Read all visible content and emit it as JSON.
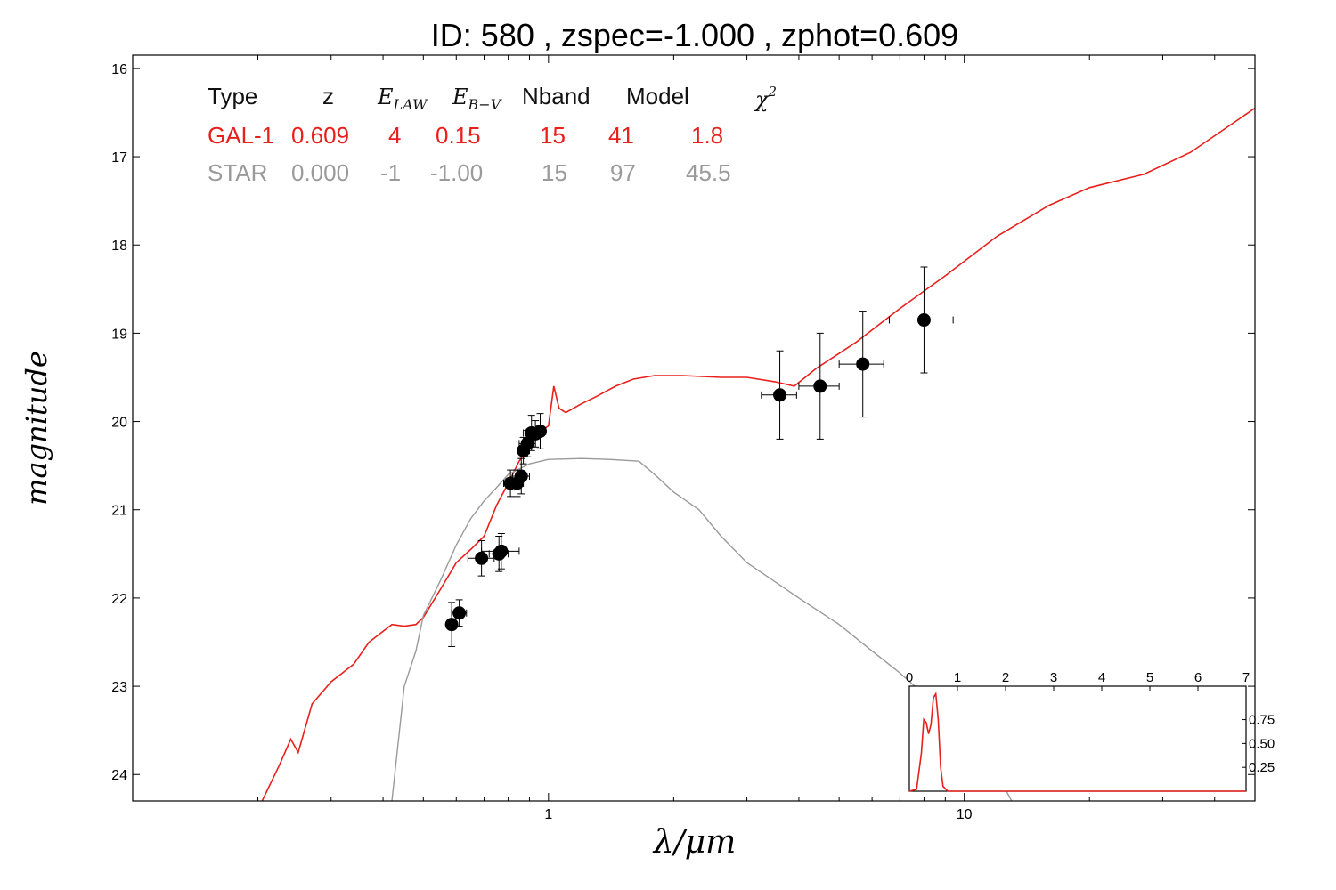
{
  "chart_data": {
    "type": "scatter",
    "title": "ID:  580   , zspec=-1.000 , zphot=0.609",
    "xlabel": "λ/μm",
    "ylabel": "magnitude",
    "x_scale": "log",
    "xlim": [
      0.1,
      50
    ],
    "ylim": [
      24.3,
      15.85
    ],
    "x_ticks": [
      {
        "value": 1,
        "label": "1"
      },
      {
        "value": 10,
        "label": "10"
      }
    ],
    "y_ticks": [
      16,
      17,
      18,
      19,
      20,
      21,
      22,
      23,
      24
    ],
    "table": {
      "headers": [
        "Type",
        "z",
        "E_LAW",
        "E_B-V",
        "Nband",
        "Model",
        "χ²"
      ],
      "rows": [
        {
          "color": "#e8201c",
          "cells": [
            "GAL-1",
            "0.609",
            "4",
            "0.15",
            "15",
            "41",
            "1.8"
          ]
        },
        {
          "color": "#9a9a9a",
          "cells": [
            "STAR",
            "0.000",
            "-1",
            "-1.00",
            "15",
            "97",
            "45.5"
          ]
        }
      ]
    },
    "series": [
      {
        "color": "#e8201c",
        "points": [
          [
            0.2,
            24.4
          ],
          [
            0.225,
            23.9
          ],
          [
            0.24,
            23.6
          ],
          [
            0.25,
            23.75
          ],
          [
            0.27,
            23.2
          ],
          [
            0.3,
            22.95
          ],
          [
            0.34,
            22.75
          ],
          [
            0.37,
            22.5
          ],
          [
            0.42,
            22.3
          ],
          [
            0.45,
            22.32
          ],
          [
            0.48,
            22.3
          ],
          [
            0.5,
            22.22
          ],
          [
            0.55,
            21.9
          ],
          [
            0.6,
            21.6
          ],
          [
            0.65,
            21.45
          ],
          [
            0.7,
            21.3
          ],
          [
            0.75,
            20.95
          ],
          [
            0.8,
            20.7
          ],
          [
            0.85,
            20.45
          ],
          [
            0.9,
            20.28
          ],
          [
            0.95,
            20.12
          ],
          [
            1.0,
            20.05
          ],
          [
            1.03,
            19.6
          ],
          [
            1.06,
            19.85
          ],
          [
            1.1,
            19.9
          ],
          [
            1.2,
            19.8
          ],
          [
            1.3,
            19.72
          ],
          [
            1.45,
            19.6
          ],
          [
            1.6,
            19.52
          ],
          [
            1.8,
            19.48
          ],
          [
            2.1,
            19.48
          ],
          [
            2.6,
            19.5
          ],
          [
            3.0,
            19.5
          ],
          [
            3.5,
            19.55
          ],
          [
            3.9,
            19.6
          ],
          [
            4.4,
            19.4
          ],
          [
            5.5,
            19.1
          ],
          [
            7.0,
            18.72
          ],
          [
            9.0,
            18.35
          ],
          [
            12,
            17.9
          ],
          [
            16,
            17.55
          ],
          [
            20,
            17.35
          ],
          [
            27,
            17.2
          ],
          [
            35,
            16.95
          ],
          [
            50,
            16.45
          ]
        ]
      },
      {
        "color": "#9a9a9a",
        "points": [
          [
            0.42,
            24.3
          ],
          [
            0.45,
            23.0
          ],
          [
            0.48,
            22.6
          ],
          [
            0.5,
            22.2
          ],
          [
            0.55,
            21.8
          ],
          [
            0.6,
            21.4
          ],
          [
            0.65,
            21.1
          ],
          [
            0.7,
            20.9
          ],
          [
            0.75,
            20.75
          ],
          [
            0.8,
            20.6
          ],
          [
            0.9,
            20.48
          ],
          [
            1.0,
            20.43
          ],
          [
            1.2,
            20.42
          ],
          [
            1.4,
            20.43
          ],
          [
            1.65,
            20.45
          ],
          [
            1.8,
            20.6
          ],
          [
            2.0,
            20.8
          ],
          [
            2.3,
            21.0
          ],
          [
            2.6,
            21.3
          ],
          [
            3.0,
            21.6
          ],
          [
            4.0,
            22.0
          ],
          [
            5.0,
            22.3
          ],
          [
            6.0,
            22.6
          ],
          [
            7.0,
            22.85
          ],
          [
            8.5,
            23.2
          ],
          [
            10,
            23.5
          ],
          [
            11,
            23.75
          ],
          [
            12,
            24.0
          ],
          [
            13,
            24.3
          ]
        ]
      }
    ],
    "photometry": [
      {
        "x": 0.585,
        "y": 22.3,
        "xerr": 0.015,
        "yerr": 0.25
      },
      {
        "x": 0.61,
        "y": 22.17,
        "xerr": 0.025,
        "yerr": 0.15
      },
      {
        "x": 0.69,
        "y": 21.55,
        "xerr": 0.05,
        "yerr": 0.2
      },
      {
        "x": 0.76,
        "y": 21.5,
        "xerr": 0.04,
        "yerr": 0.2
      },
      {
        "x": 0.77,
        "y": 21.47,
        "xerr": 0.08,
        "yerr": 0.2
      },
      {
        "x": 0.81,
        "y": 20.7,
        "xerr": 0.03,
        "yerr": 0.15
      },
      {
        "x": 0.84,
        "y": 20.7,
        "xerr": 0.03,
        "yerr": 0.15
      },
      {
        "x": 0.86,
        "y": 20.62,
        "xerr": 0.04,
        "yerr": 0.2
      },
      {
        "x": 0.87,
        "y": 20.33,
        "xerr": 0.03,
        "yerr": 0.15
      },
      {
        "x": 0.89,
        "y": 20.25,
        "xerr": 0.04,
        "yerr": 0.15
      },
      {
        "x": 0.91,
        "y": 20.13,
        "xerr": 0.04,
        "yerr": 0.2
      },
      {
        "x": 0.93,
        "y": 20.14,
        "xerr": 0.03,
        "yerr": 0.15
      },
      {
        "x": 0.955,
        "y": 20.11,
        "xerr": 0.03,
        "yerr": 0.2
      },
      {
        "x": 3.6,
        "y": 19.7,
        "xerr": 0.35,
        "yerr": 0.5
      },
      {
        "x": 4.5,
        "y": 19.6,
        "xerr": 0.5,
        "yerr": 0.6
      },
      {
        "x": 5.7,
        "y": 19.35,
        "xerr": 0.7,
        "yerr": 0.6
      },
      {
        "x": 8.0,
        "y": 18.85,
        "xerr": 1.4,
        "yerr": 0.6
      }
    ],
    "inset": {
      "type": "line",
      "xlim": [
        0,
        7
      ],
      "ylim": [
        0,
        1.1
      ],
      "x_ticks": [
        0,
        1,
        2,
        3,
        4,
        5,
        6,
        7
      ],
      "y_ticks": [
        0.25,
        0.5,
        0.75
      ],
      "y_tick_labels": [
        "0.25",
        "0.50",
        "0.75"
      ],
      "color": "#e8201c",
      "x": [
        0,
        0.15,
        0.25,
        0.3,
        0.35,
        0.4,
        0.45,
        0.5,
        0.55,
        0.6,
        0.65,
        0.7,
        0.8,
        1,
        7
      ],
      "y": [
        0,
        0.02,
        0.4,
        0.75,
        0.72,
        0.6,
        0.7,
        0.98,
        1.02,
        0.75,
        0.25,
        0.05,
        0,
        0,
        0
      ]
    }
  }
}
